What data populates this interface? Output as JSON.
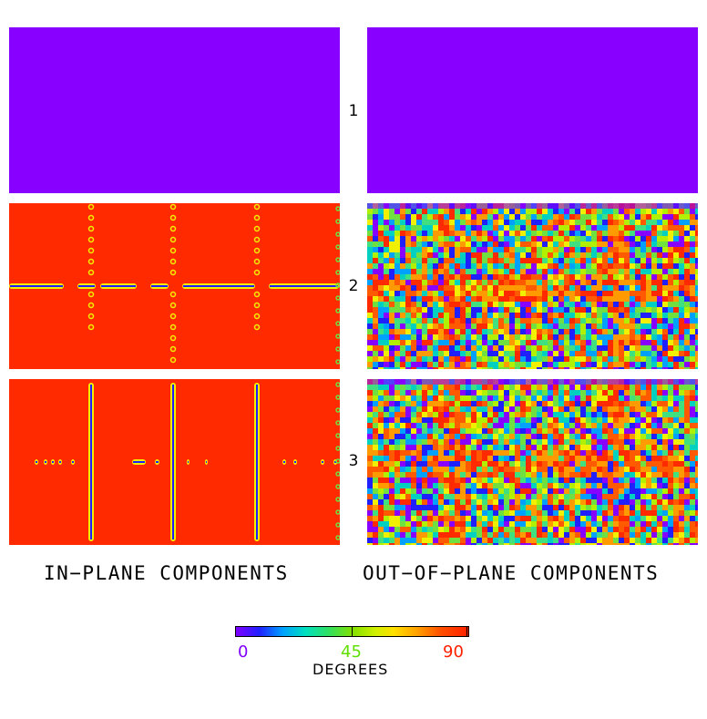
{
  "rows": [
    {
      "label": "1",
      "in_plane": "uniform",
      "out_of_plane": "uniform"
    },
    {
      "label": "2",
      "in_plane": "defect-lines",
      "out_of_plane": "noisy"
    },
    {
      "label": "3",
      "in_plane": "defect-lines",
      "out_of_plane": "noisy"
    }
  ],
  "columns": {
    "left": "IN−PLANE COMPONENTS",
    "right": "OUT−OF−PLANE COMPONENTS"
  },
  "colorbar": {
    "min_label": "0",
    "mid_label": "45",
    "max_label": "90",
    "units": "DEGREES",
    "min_color": "#8000ff",
    "mid_color": "#60e000",
    "max_color": "#ff2000"
  },
  "colors": {
    "violet": "#8800ff",
    "red": "#ff2a00",
    "green": "#70e040",
    "yellow": "#f0f000",
    "blue": "#2020ff"
  }
}
